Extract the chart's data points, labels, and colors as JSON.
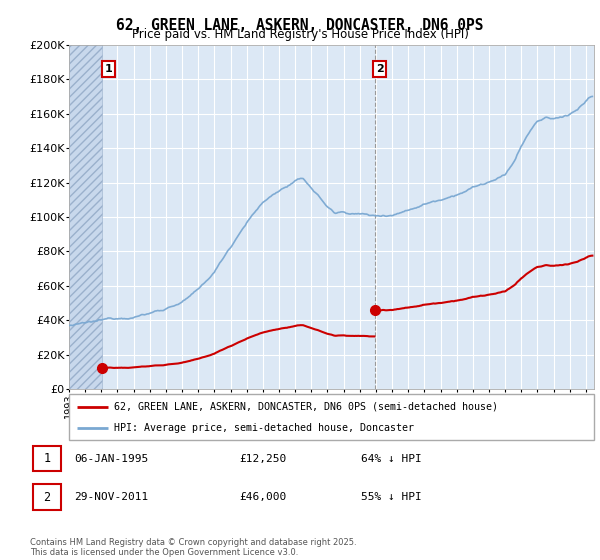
{
  "title": "62, GREEN LANE, ASKERN, DONCASTER, DN6 0PS",
  "subtitle": "Price paid vs. HM Land Registry's House Price Index (HPI)",
  "ylim": [
    0,
    200000
  ],
  "yticks": [
    0,
    20000,
    40000,
    60000,
    80000,
    100000,
    120000,
    140000,
    160000,
    180000,
    200000
  ],
  "xlim_start": 1993.0,
  "xlim_end": 2025.5,
  "hpi_color": "#7aa8d2",
  "price_color": "#cc0000",
  "sale1_x": 1995.04,
  "sale1_y": 12250,
  "sale2_x": 2011.92,
  "sale2_y": 46000,
  "legend_label1": "62, GREEN LANE, ASKERN, DONCASTER, DN6 0PS (semi-detached house)",
  "legend_label2": "HPI: Average price, semi-detached house, Doncaster",
  "copyright_text": "Contains HM Land Registry data © Crown copyright and database right 2025.\nThis data is licensed under the Open Government Licence v3.0.",
  "bg_plot": "#dce8f5",
  "grid_color": "#ffffff",
  "hatch_region_end": 1995.04
}
